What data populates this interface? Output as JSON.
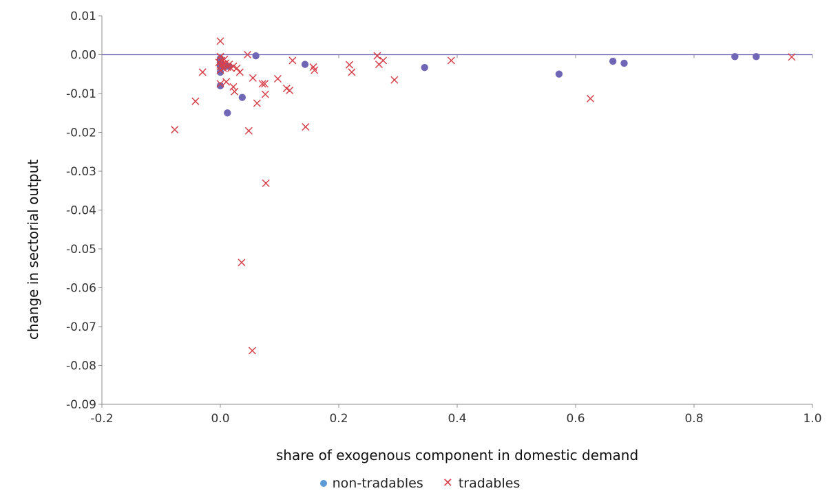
{
  "chart_data": {
    "type": "scatter",
    "xlabel": "share of exogenous component in domestic demand",
    "ylabel": "change in sectorial output",
    "xlim": [
      -0.2,
      1.0
    ],
    "ylim": [
      -0.09,
      0.01
    ],
    "x_ticks": [
      "-0.2",
      "0.0",
      "0.2",
      "0.4",
      "0.6",
      "0.8",
      "1.0"
    ],
    "y_ticks": [
      "0.01",
      "0.00",
      "-0.01",
      "-0.02",
      "-0.03",
      "-0.04",
      "-0.05",
      "-0.06",
      "-0.07",
      "-0.08",
      "-0.09"
    ],
    "grid": false,
    "legend_position": "bottom",
    "zero_line": true,
    "series": [
      {
        "name": "non-tradables",
        "marker": "circle",
        "color": "#6f67b5",
        "legend_color": "#5b9bd5",
        "points": [
          {
            "x": 0.0,
            "y": -0.001
          },
          {
            "x": 0.0,
            "y": -0.002
          },
          {
            "x": 0.0,
            "y": -0.003
          },
          {
            "x": 0.0,
            "y": -0.0045
          },
          {
            "x": 0.0,
            "y": -0.008
          },
          {
            "x": 0.01,
            "y": -0.003
          },
          {
            "x": 0.015,
            "y": -0.003
          },
          {
            "x": 0.012,
            "y": -0.015
          },
          {
            "x": 0.037,
            "y": -0.011
          },
          {
            "x": 0.06,
            "y": -0.0003
          },
          {
            "x": 0.143,
            "y": -0.0025
          },
          {
            "x": 0.345,
            "y": -0.0033
          },
          {
            "x": 0.572,
            "y": -0.005
          },
          {
            "x": 0.663,
            "y": -0.0017
          },
          {
            "x": 0.682,
            "y": -0.0022
          },
          {
            "x": 0.869,
            "y": -0.0005
          },
          {
            "x": 0.905,
            "y": -0.0005
          }
        ]
      },
      {
        "name": "tradables",
        "marker": "x",
        "color": "#d6414a",
        "legend_color": "#d6414a",
        "points": [
          {
            "x": 0.0,
            "y": 0.0035
          },
          {
            "x": 0.0,
            "y": -0.0005
          },
          {
            "x": 0.002,
            "y": -0.0015
          },
          {
            "x": -0.002,
            "y": -0.002
          },
          {
            "x": 0.004,
            "y": -0.0025
          },
          {
            "x": 0.0,
            "y": -0.003
          },
          {
            "x": 0.007,
            "y": -0.0012
          },
          {
            "x": 0.009,
            "y": -0.0022
          },
          {
            "x": 0.005,
            "y": -0.0035
          },
          {
            "x": 0.0,
            "y": -0.004
          },
          {
            "x": 0.012,
            "y": -0.0032
          },
          {
            "x": 0.015,
            "y": -0.0025
          },
          {
            "x": 0.018,
            "y": -0.0035
          },
          {
            "x": 0.022,
            "y": -0.003
          },
          {
            "x": 0.028,
            "y": -0.0035
          },
          {
            "x": 0.033,
            "y": -0.0045
          },
          {
            "x": 0.0,
            "y": -0.0075
          },
          {
            "x": 0.01,
            "y": -0.007
          },
          {
            "x": 0.022,
            "y": -0.0083
          },
          {
            "x": 0.024,
            "y": -0.0095
          },
          {
            "x": 0.046,
            "y": 0.0
          },
          {
            "x": 0.055,
            "y": -0.006
          },
          {
            "x": 0.062,
            "y": -0.0125
          },
          {
            "x": 0.071,
            "y": -0.0075
          },
          {
            "x": 0.075,
            "y": -0.0075
          },
          {
            "x": 0.076,
            "y": -0.0102
          },
          {
            "x": 0.097,
            "y": -0.0062
          },
          {
            "x": 0.112,
            "y": -0.0087
          },
          {
            "x": 0.117,
            "y": -0.0092
          },
          {
            "x": 0.122,
            "y": -0.0015
          },
          {
            "x": 0.157,
            "y": -0.0032
          },
          {
            "x": 0.159,
            "y": -0.004
          },
          {
            "x": 0.218,
            "y": -0.0026
          },
          {
            "x": 0.222,
            "y": -0.0045
          },
          {
            "x": 0.265,
            "y": -0.0003
          },
          {
            "x": 0.268,
            "y": -0.0025
          },
          {
            "x": 0.275,
            "y": -0.0015
          },
          {
            "x": 0.294,
            "y": -0.0065
          },
          {
            "x": 0.39,
            "y": -0.0015
          },
          {
            "x": -0.03,
            "y": -0.0045
          },
          {
            "x": -0.042,
            "y": -0.012
          },
          {
            "x": -0.077,
            "y": -0.0193
          },
          {
            "x": 0.048,
            "y": -0.0196
          },
          {
            "x": 0.144,
            "y": -0.0186
          },
          {
            "x": 0.077,
            "y": -0.0331
          },
          {
            "x": 0.036,
            "y": -0.0535
          },
          {
            "x": 0.054,
            "y": -0.0762
          },
          {
            "x": 0.625,
            "y": -0.0113
          },
          {
            "x": 0.965,
            "y": -0.0006
          }
        ]
      }
    ]
  }
}
